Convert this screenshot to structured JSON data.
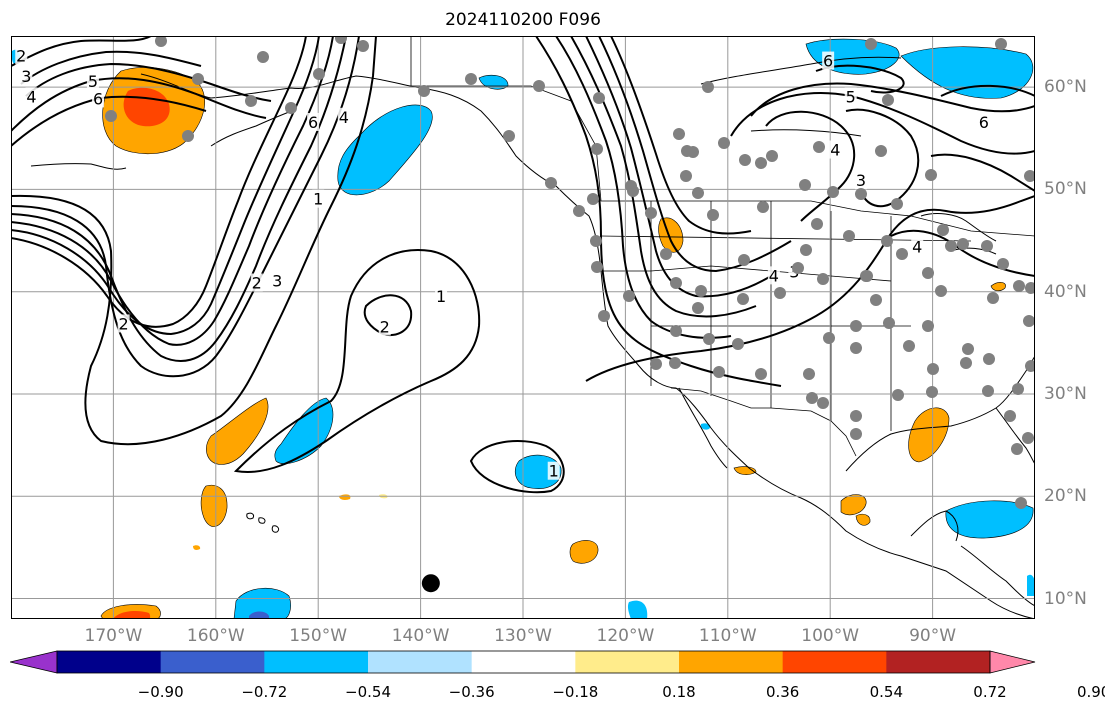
{
  "title": "2024110200 F096",
  "map": {
    "projection": "plate-carree",
    "lon_range": [
      -180,
      -80
    ],
    "lat_range": [
      8,
      65
    ],
    "gridline_lons": [
      -170,
      -160,
      -150,
      -140,
      -130,
      -120,
      -110,
      -100,
      -90
    ],
    "gridline_lats": [
      10,
      20,
      30,
      40,
      50,
      60
    ],
    "lon_labels": [
      "170°W",
      "160°W",
      "150°W",
      "140°W",
      "130°W",
      "120°W",
      "110°W",
      "100°W",
      "90°W"
    ],
    "lat_labels": [
      "60°N",
      "50°N",
      "40°N",
      "30°N",
      "20°N",
      "10°N"
    ],
    "contour_labels": [
      {
        "text": "2",
        "lon": -179,
        "lat": 63
      },
      {
        "text": "3",
        "lon": -178.5,
        "lat": 61
      },
      {
        "text": "4",
        "lon": -178,
        "lat": 59
      },
      {
        "text": "5",
        "lon": -172,
        "lat": 60.5
      },
      {
        "text": "6",
        "lon": -171.5,
        "lat": 58.8
      },
      {
        "text": "6",
        "lon": -150.5,
        "lat": 56.5
      },
      {
        "text": "4",
        "lon": -147.5,
        "lat": 57
      },
      {
        "text": "1",
        "lon": -150,
        "lat": 49
      },
      {
        "text": "3",
        "lon": -154,
        "lat": 41
      },
      {
        "text": "2",
        "lon": -156,
        "lat": 40.8
      },
      {
        "text": "2",
        "lon": -169,
        "lat": 36.8
      },
      {
        "text": "2",
        "lon": -143.5,
        "lat": 36.5
      },
      {
        "text": "1",
        "lon": -138,
        "lat": 39.5
      },
      {
        "text": "1",
        "lon": -127,
        "lat": 22.4
      },
      {
        "text": "6",
        "lon": -100.2,
        "lat": 62.5
      },
      {
        "text": "5",
        "lon": -98,
        "lat": 59
      },
      {
        "text": "6",
        "lon": -85,
        "lat": 56.5
      },
      {
        "text": "4",
        "lon": -99.5,
        "lat": 53.8
      },
      {
        "text": "3",
        "lon": -97,
        "lat": 50.8
      },
      {
        "text": "4",
        "lon": -105.5,
        "lat": 41.5
      },
      {
        "text": "3",
        "lon": -103.5,
        "lat": 41.9
      },
      {
        "text": "4",
        "lon": -91.5,
        "lat": 44.3
      }
    ],
    "station_marker": {
      "lon": -139,
      "lat": 11.5
    }
  },
  "colorbar": {
    "levels": [
      "−0.90",
      "−0.72",
      "−0.54",
      "−0.36",
      "−0.18",
      "0.18",
      "0.36",
      "0.54",
      "0.72",
      "0.90"
    ],
    "colors": [
      "#9932cc",
      "#00008b",
      "#3a5fcd",
      "#00bfff",
      "#b0e2ff",
      "#ffffff",
      "#ffec8b",
      "#ffa500",
      "#ff4500",
      "#b22222",
      "#ff88aa"
    ]
  }
}
